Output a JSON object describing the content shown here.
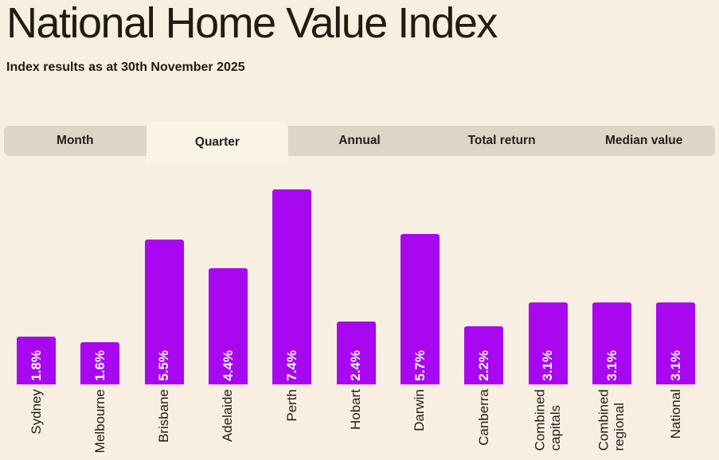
{
  "window": {
    "background": "#f6efe2"
  },
  "header": {
    "title": "National Home Value Index",
    "subtitle": "Index results as at 30th November 2025"
  },
  "tabs": {
    "items": [
      {
        "label": "Month",
        "selected": false
      },
      {
        "label": "Quarter",
        "selected": true
      },
      {
        "label": "Annual",
        "selected": false
      },
      {
        "label": "Total return",
        "selected": false
      },
      {
        "label": "Median value",
        "selected": false
      }
    ],
    "bar_color": "#ddd6c8",
    "selected_tab_color": "#faf3e7",
    "label_color": "#23201b"
  },
  "chart_data": {
    "type": "bar",
    "title": "National Home Value Index",
    "subtitle": "Index results as at 30th November 2025",
    "selected_period": "Quarter",
    "unit": "%",
    "categories": [
      "Sydney",
      "Melbourne",
      "Brisbane",
      "Adelaide",
      "Perth",
      "Hobart",
      "Darwin",
      "Canberra",
      "Combined capitals",
      "Combined regional",
      "National"
    ],
    "values": [
      1.8,
      1.6,
      5.5,
      4.4,
      7.4,
      2.4,
      5.7,
      2.2,
      3.1,
      3.1,
      3.1
    ],
    "value_labels": [
      "1.8%",
      "1.6%",
      "5.5%",
      "4.4%",
      "7.4%",
      "2.4%",
      "5.7%",
      "2.2%",
      "3.1%",
      "3.1%",
      "3.1%"
    ],
    "bar_color": "#a807f0",
    "value_label_color": "#ffffff",
    "category_label_color": "#211c15",
    "value_labels_position": "inside-bottom-rotated",
    "category_labels_position": "below-rotated",
    "ylim": [
      0,
      7.4
    ],
    "grid": false,
    "legend": false
  }
}
